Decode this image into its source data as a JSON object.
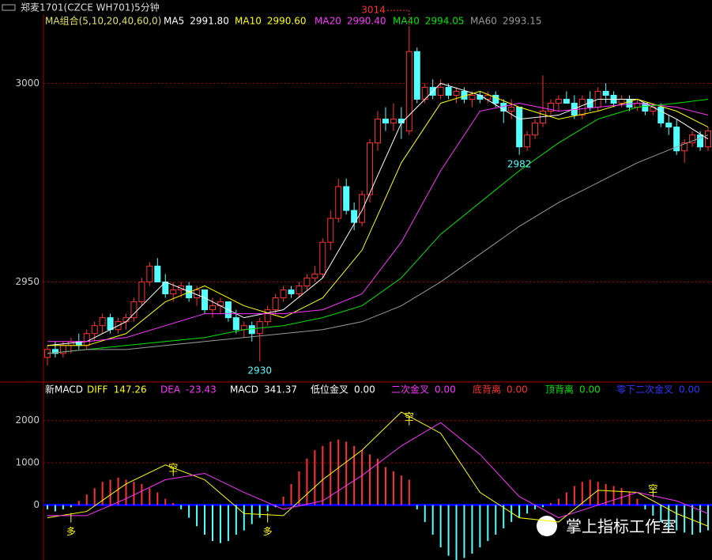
{
  "window_title": "郑麦1701(CZCE WH701)5分钟",
  "watermark": "掌上指标工作室",
  "chart_data": [
    {
      "type": "candlestick",
      "title": "MA组合(5,10,20,40,60,0)",
      "ylim": [
        2925,
        3017
      ],
      "yticks": [
        2950,
        3000
      ],
      "grid": true,
      "up_color": "#ff3232",
      "down_color": "#54ffff",
      "candles": {
        "open": [
          2931,
          2933,
          2932,
          2934,
          2935,
          2934,
          2937,
          2939,
          2941,
          2938,
          2940,
          2941,
          2945,
          2950,
          2954,
          2950,
          2947,
          2948,
          2949,
          2946,
          2948,
          2943,
          2944,
          2945,
          2941,
          2938,
          2939,
          2937,
          2940,
          2943,
          2946,
          2948,
          2947,
          2949,
          2951,
          2952,
          2960,
          2966,
          2974,
          2968,
          2965,
          2972,
          2985,
          2991,
          2990,
          2991,
          2988,
          3008,
          2996,
          2999,
          2997,
          2999,
          2997,
          2998,
          2996,
          2997,
          2996,
          2997,
          2995,
          2993,
          2994,
          2984,
          2987,
          2990,
          2993,
          2995,
          2996,
          2995,
          2992,
          2996,
          2994,
          2998,
          2997,
          2995,
          2996,
          2994,
          2995,
          2993,
          2994,
          2990,
          2989,
          2983,
          2985,
          2987,
          2984
        ],
        "high": [
          2934,
          2935,
          2935,
          2936,
          2937,
          2938,
          2940,
          2942,
          2942,
          2941,
          2942,
          2946,
          2951,
          2955,
          2956,
          2952,
          2950,
          2950,
          2950,
          2949,
          2948,
          2946,
          2946,
          2945,
          2943,
          2940,
          2940,
          2941,
          2944,
          2947,
          2949,
          2949,
          2950,
          2952,
          2954,
          2961,
          2968,
          2976,
          2976,
          2970,
          2973,
          2986,
          2993,
          2994,
          2995,
          2994,
          3014,
          3009,
          3000,
          3001,
          3001,
          3000,
          2999,
          2999,
          2998,
          2998,
          2998,
          2998,
          2996,
          2996,
          2994,
          2988,
          2991,
          3002,
          2996,
          2997,
          2998,
          2997,
          2997,
          2998,
          2999,
          3000,
          2998,
          2997,
          2997,
          2996,
          2995,
          2995,
          2995,
          2992,
          2991,
          2986,
          2988,
          2988,
          2989
        ],
        "low": [
          2929,
          2931,
          2931,
          2932,
          2933,
          2933,
          2935,
          2937,
          2937,
          2937,
          2938,
          2940,
          2944,
          2949,
          2950,
          2946,
          2945,
          2946,
          2945,
          2944,
          2942,
          2941,
          2942,
          2940,
          2937,
          2936,
          2935,
          2930,
          2939,
          2942,
          2945,
          2946,
          2946,
          2948,
          2950,
          2951,
          2958,
          2965,
          2967,
          2963,
          2964,
          2970,
          2983,
          2988,
          2988,
          2986,
          2987,
          2995,
          2995,
          2996,
          2996,
          2996,
          2995,
          2995,
          2994,
          2995,
          2995,
          2994,
          2990,
          2991,
          2982,
          2983,
          2986,
          2989,
          2992,
          2993,
          2995,
          2991,
          2991,
          2993,
          2993,
          2995,
          2994,
          2994,
          2993,
          2993,
          2992,
          2992,
          2989,
          2987,
          2982,
          2980,
          2984,
          2983,
          2983
        ],
        "close": [
          2933,
          2932,
          2934,
          2935,
          2934,
          2937,
          2939,
          2941,
          2938,
          2940,
          2941,
          2945,
          2950,
          2954,
          2950,
          2947,
          2948,
          2949,
          2946,
          2948,
          2943,
          2944,
          2945,
          2941,
          2938,
          2939,
          2937,
          2940,
          2943,
          2946,
          2948,
          2947,
          2949,
          2951,
          2952,
          2960,
          2966,
          2974,
          2968,
          2965,
          2972,
          2985,
          2991,
          2990,
          2991,
          2990,
          3008,
          2996,
          2999,
          2997,
          2999,
          2997,
          2998,
          2996,
          2997,
          2996,
          2997,
          2995,
          2993,
          2994,
          2984,
          2987,
          2990,
          2993,
          2995,
          2996,
          2995,
          2992,
          2996,
          2994,
          2998,
          2997,
          2995,
          2996,
          2994,
          2995,
          2993,
          2994,
          2990,
          2989,
          2983,
          2985,
          2987,
          2984,
          2988
        ]
      },
      "series": [
        {
          "name": "MA5",
          "color": "#ffffff",
          "current": {
            "value": 2991.8,
            "label": "2991.80"
          },
          "x": [
            0,
            5,
            10,
            15,
            20,
            25,
            30,
            35,
            40,
            45,
            50,
            55,
            60,
            65,
            70,
            75,
            80,
            84
          ],
          "values": [
            2934,
            2935,
            2940,
            2950,
            2946,
            2941,
            2943,
            2951,
            2968,
            2990,
            3000,
            2997,
            2991,
            2992,
            2996,
            2996,
            2991,
            2986
          ]
        },
        {
          "name": "MA10",
          "color": "#ffff00",
          "current": {
            "value": 2990.6,
            "label": "2990.60"
          },
          "x": [
            0,
            5,
            10,
            15,
            20,
            25,
            30,
            35,
            40,
            45,
            50,
            55,
            60,
            65,
            70,
            75,
            80,
            84
          ],
          "values": [
            2934,
            2934,
            2937,
            2945,
            2949,
            2944,
            2941,
            2946,
            2958,
            2980,
            2995,
            2998,
            2994,
            2991,
            2993,
            2996,
            2993,
            2989
          ]
        },
        {
          "name": "MA20",
          "color": "#ff33ff",
          "current": {
            "value": 2990.4,
            "label": "2990.40"
          },
          "x": [
            0,
            5,
            10,
            15,
            20,
            25,
            30,
            35,
            40,
            45,
            50,
            55,
            60,
            65,
            70,
            75,
            80,
            84
          ],
          "values": [
            2935,
            2935,
            2936,
            2939,
            2942,
            2942,
            2942,
            2943,
            2947,
            2960,
            2978,
            2993,
            2995,
            2993,
            2994,
            2995,
            2994,
            2992
          ]
        },
        {
          "name": "MA40",
          "color": "#00e600",
          "current": {
            "value": 2994.05,
            "label": "2994.05"
          },
          "x": [
            0,
            5,
            10,
            15,
            20,
            25,
            30,
            35,
            40,
            45,
            50,
            55,
            60,
            65,
            70,
            75,
            80,
            84
          ],
          "values": [
            2932,
            2933,
            2934,
            2935,
            2936,
            2938,
            2939,
            2941,
            2944,
            2951,
            2962,
            2970,
            2978,
            2985,
            2991,
            2994,
            2995,
            2996
          ]
        },
        {
          "name": "MA60",
          "color": "#999999",
          "current": {
            "value": 2993.15,
            "label": "2993.15"
          },
          "x": [
            0,
            5,
            10,
            15,
            20,
            25,
            30,
            35,
            40,
            45,
            50,
            55,
            60,
            65,
            70,
            75,
            80,
            84
          ],
          "values": [
            2932,
            2933,
            2933,
            2934,
            2935,
            2936,
            2937,
            2938,
            2940,
            2944,
            2950,
            2957,
            2964,
            2970,
            2975,
            2980,
            2984,
            2987
          ]
        }
      ],
      "price_labels": [
        {
          "index": 46,
          "value": 3014,
          "color": "#ff3232"
        },
        {
          "index": 27,
          "value": 2930,
          "color": "#54ffff"
        },
        {
          "index": 60,
          "value": 2982,
          "color": "#54ffff"
        }
      ]
    },
    {
      "type": "macd",
      "title": "新MACD",
      "ylim": [
        -1300,
        2500
      ],
      "yticks": [
        0,
        1000,
        2000
      ],
      "grid": true,
      "up_color": "#ff3232",
      "down_color": "#54ffff",
      "zero_color": "#0000ff",
      "histogram": {
        "name": "MACD",
        "color": "#ffffff",
        "current": 341.37,
        "values": [
          -100,
          -150,
          -100,
          -50,
          100,
          250,
          400,
          550,
          600,
          650,
          600,
          550,
          500,
          400,
          300,
          150,
          50,
          -100,
          -300,
          -500,
          -700,
          -850,
          -900,
          -850,
          -700,
          -600,
          -450,
          -300,
          -150,
          -50,
          200,
          500,
          800,
          1100,
          1300,
          1400,
          1500,
          1550,
          1500,
          1400,
          1300,
          1200,
          1100,
          900,
          800,
          700,
          600,
          -100,
          -400,
          -700,
          -1000,
          -1200,
          -1300,
          -1250,
          -1150,
          -1000,
          -850,
          -700,
          -550,
          -400,
          -300,
          -200,
          -100,
          -50,
          50,
          150,
          300,
          450,
          550,
          600,
          550,
          500,
          450,
          400,
          300,
          150,
          -100,
          -250,
          -400,
          -550,
          -600,
          -650,
          -700,
          -650,
          -600
        ]
      },
      "series": [
        {
          "name": "DIFF",
          "color": "#ffff00",
          "current": 147.26,
          "x": [
            0,
            5,
            10,
            15,
            20,
            25,
            30,
            35,
            40,
            45,
            50,
            55,
            60,
            65,
            70,
            75,
            80,
            84
          ],
          "values": [
            -300,
            -150,
            500,
            950,
            600,
            -200,
            -250,
            600,
            1300,
            2200,
            1700,
            300,
            -300,
            -400,
            350,
            300,
            -200,
            -500
          ]
        },
        {
          "name": "DEA",
          "color": "#ff33ff",
          "current": -23.43,
          "x": [
            0,
            5,
            10,
            15,
            20,
            25,
            30,
            35,
            40,
            45,
            50,
            55,
            60,
            65,
            70,
            75,
            80,
            84
          ],
          "values": [
            -250,
            -250,
            150,
            600,
            750,
            300,
            -100,
            100,
            700,
            1400,
            1950,
            1200,
            200,
            -300,
            0,
            300,
            100,
            -200
          ]
        }
      ],
      "signals": [
        {
          "name": "低位金叉",
          "color": "#ffffff",
          "current": {
            "value": 0,
            "label": "0.00"
          }
        },
        {
          "name": "二次金叉",
          "color": "#ff33ff",
          "current": {
            "value": 0,
            "label": "0.00"
          }
        },
        {
          "name": "底背离",
          "color": "#ff3232",
          "current": {
            "value": 0,
            "label": "0.00"
          }
        },
        {
          "name": "顶背离",
          "color": "#00e600",
          "current": {
            "value": 0,
            "label": "0.00"
          }
        },
        {
          "name": "零下二次金叉",
          "color": "#3333ff",
          "current": {
            "value": 0,
            "label": "0.00"
          }
        }
      ],
      "markers": [
        {
          "text": "多",
          "index": 3,
          "value": -300
        },
        {
          "text": "空",
          "index": 16,
          "value": 800
        },
        {
          "text": "多",
          "index": 28,
          "value": -300
        },
        {
          "text": "空",
          "index": 46,
          "value": 2000
        },
        {
          "text": "空",
          "index": 77,
          "value": 300
        }
      ]
    }
  ]
}
